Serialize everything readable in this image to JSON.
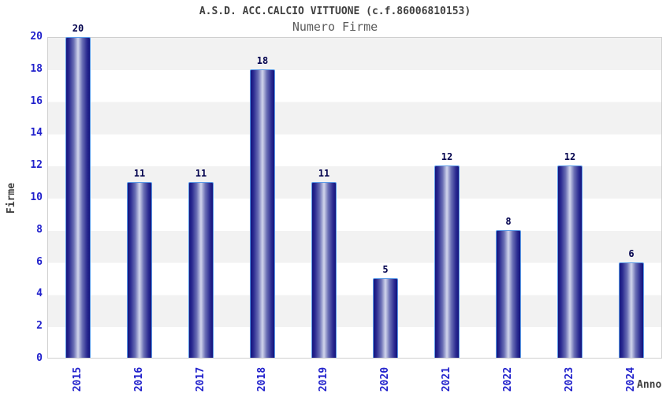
{
  "header": {
    "title": "A.S.D. ACC.CALCIO VITTUONE (c.f.86006810153)",
    "subtitle": "Numero Firme"
  },
  "chart_data": {
    "type": "bar",
    "title": "A.S.D. ACC.CALCIO VITTUONE (c.f.86006810153)",
    "subtitle": "Numero Firme",
    "xlabel": "Anno",
    "ylabel": "Firme",
    "categories": [
      "2015",
      "2016",
      "2017",
      "2018",
      "2019",
      "2020",
      "2021",
      "2022",
      "2023",
      "2024"
    ],
    "values": [
      20,
      11,
      11,
      18,
      11,
      5,
      12,
      8,
      12,
      6
    ],
    "ylim": [
      0,
      20
    ],
    "ytick_step": 2,
    "grid": "alternating-horizontal-bands-gray-on-top",
    "legend": "none",
    "colors": {
      "bar_dark": "#14147d",
      "bar_mid2": "#2a2a91",
      "bar_mid": "#6a6fb5",
      "bar_light": "#d2d6ec",
      "bar_border": "#5b9be8",
      "tick_label": "#2222cc",
      "value_label": "#00004d",
      "band_gray": "#f2f2f2",
      "plot_border": "#cfcfcf",
      "title_color": "#404040",
      "subtitle_color": "#5a5a5a"
    }
  }
}
